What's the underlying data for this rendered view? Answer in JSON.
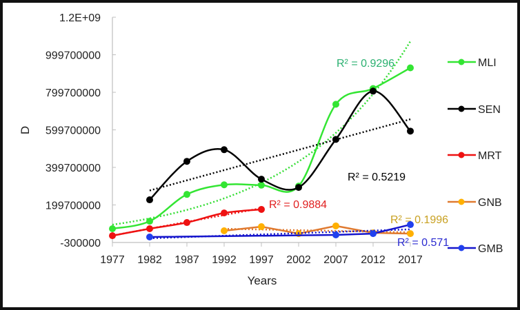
{
  "chart_data": {
    "type": "line",
    "title": "",
    "xlabel": "Years",
    "ylabel": "D",
    "x": [
      1977,
      1982,
      1987,
      1992,
      1997,
      2002,
      2007,
      2012,
      2017
    ],
    "x_tick_labels": [
      "1977",
      "1982",
      "1987",
      "1992",
      "1997",
      "2002",
      "2007",
      "2012",
      "2017"
    ],
    "y_ticks": [
      -300000,
      199700000,
      399700000,
      599700000,
      799700000,
      999700000,
      1199700000
    ],
    "y_tick_labels": [
      "-300000",
      "199700000",
      "399700000",
      "599700000",
      "799700000",
      "999700000",
      "1.2E+09"
    ],
    "ylim": [
      -300000,
      1199700000
    ],
    "xlim": [
      1977,
      2017
    ],
    "grid": false,
    "legend_placement": "right",
    "series": [
      {
        "name": "MLI",
        "color": "#33e533",
        "smooth": true,
        "trend": "exponential",
        "r2_label": "R² = 0.9296",
        "r2_color": "#2ab070",
        "points": [
          [
            1977,
            73000000
          ],
          [
            1982,
            113000000
          ],
          [
            1987,
            256000000
          ],
          [
            1992,
            307000000
          ],
          [
            1997,
            305000000
          ],
          [
            2002,
            300000000
          ],
          [
            2007,
            736000000
          ],
          [
            2012,
            820000000
          ],
          [
            2017,
            930000000
          ]
        ]
      },
      {
        "name": "SEN",
        "color": "#000000",
        "smooth": true,
        "trend": "linear",
        "r2_label": "R² = 0.5219",
        "r2_color": "#000000",
        "points": [
          [
            1982,
            227000000
          ],
          [
            1987,
            432000000
          ],
          [
            1992,
            494000000
          ],
          [
            1997,
            337000000
          ],
          [
            2002,
            293000000
          ],
          [
            2007,
            549000000
          ],
          [
            2012,
            806000000
          ],
          [
            2017,
            593000000
          ]
        ]
      },
      {
        "name": "MRT",
        "color": "#ee1111",
        "smooth": true,
        "trend": "linear",
        "r2_label": "R² = 0.9884",
        "r2_color": "#e02020",
        "points": [
          [
            1977,
            36000000
          ],
          [
            1982,
            73000000
          ],
          [
            1987,
            106000000
          ],
          [
            1992,
            157000000
          ],
          [
            1997,
            176000000
          ]
        ]
      },
      {
        "name": "GNB",
        "color": "#e07a30",
        "marker_color": "#ffb000",
        "smooth": false,
        "trend": "linear",
        "r2_label": "R² = 0.1996",
        "r2_color": "#c8a020",
        "points": [
          [
            1992,
            62000000
          ],
          [
            1997,
            84000000
          ],
          [
            2002,
            47000000
          ],
          [
            2007,
            88000000
          ],
          [
            2012,
            51000000
          ],
          [
            2017,
            47000000
          ]
        ]
      },
      {
        "name": "GMB",
        "color": "#1515cc",
        "marker_color": "#2040ee",
        "smooth": false,
        "trend": "linear",
        "r2_label": "R² = 0.571",
        "r2_color": "#2a2ad0",
        "points": [
          [
            1982,
            29000000
          ],
          [
            2007,
            40000000
          ],
          [
            2012,
            47000000
          ],
          [
            2017,
            95000000
          ]
        ]
      }
    ]
  }
}
